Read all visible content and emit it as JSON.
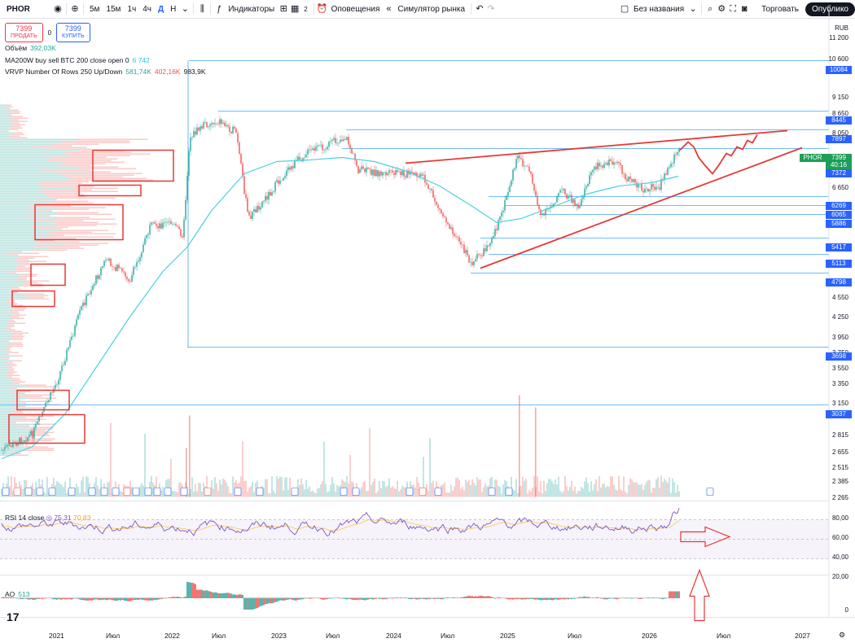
{
  "toolbar": {
    "symbol": "PHOR",
    "intervals": [
      "5м",
      "15м",
      "1ч",
      "4ч",
      "Д",
      "Н"
    ],
    "indicators_label": "Индикаторы",
    "layouts_count": "2",
    "alerts_label": "Оповещения",
    "replay_label": "Симулятор рынка",
    "layout_name": "Без названия",
    "trade_label": "Торговать",
    "publish_label": "Опублико"
  },
  "order": {
    "sell_price": "7399",
    "sell_label": "ПРОДАТЬ",
    "spread": "0",
    "buy_price": "7399",
    "buy_label": "КУПИТЬ"
  },
  "legend": {
    "volume_label": "Объём",
    "volume_value": "392,03K",
    "ma_label": "MA200W buy sell BTC 200 close open 0",
    "ma_value": "6 742",
    "vrvp_label": "VRVP Number Of Rows 250 Up/Down",
    "vrvp_up": "581,74K",
    "vrvp_down": "402,16K",
    "vrvp_total": "983,9K",
    "rsi_label": "RSI 14 close",
    "rsi_value": "75,31",
    "rsi_value2": "70,83",
    "ao_label": "AO",
    "ao_value": "513"
  },
  "price_axis": {
    "currency": "RUB",
    "labels": [
      "11 200",
      "10 600",
      "9 150",
      "8 650",
      "8 050",
      "6 650",
      "4 550",
      "4 250",
      "3 950",
      "3 750",
      "3 550",
      "3 350",
      "3 150",
      "2 815",
      "2 655",
      "2 515",
      "2 385",
      "2 265"
    ],
    "tags": [
      {
        "text": "10084",
        "color": "#2962ff"
      },
      {
        "text": "8445",
        "color": "#2962ff"
      },
      {
        "text": "7897",
        "color": "#2962ff"
      },
      {
        "text": "7399",
        "color": "#1e9e59"
      },
      {
        "text": "40:16",
        "color": "#1e9e59"
      },
      {
        "text": "7372",
        "color": "#2962ff"
      },
      {
        "text": "6269",
        "color": "#2962ff"
      },
      {
        "text": "6065",
        "color": "#2962ff"
      },
      {
        "text": "5886",
        "color": "#2962ff"
      },
      {
        "text": "5417",
        "color": "#2962ff"
      },
      {
        "text": "5113",
        "color": "#2962ff"
      },
      {
        "text": "4798",
        "color": "#2962ff"
      },
      {
        "text": "3698",
        "color": "#2962ff"
      },
      {
        "text": "3037",
        "color": "#2962ff"
      }
    ],
    "symbol_tag": "PHOR"
  },
  "rsi_axis": [
    "80,00",
    "60,00",
    "40,00",
    "20,00"
  ],
  "ao_axis": [
    "0"
  ],
  "time_axis": [
    "2021",
    "Июл",
    "2022",
    "Июл",
    "2023",
    "Июл",
    "2024",
    "Июл",
    "2025",
    "Июл",
    "2026",
    "Июл",
    "2027"
  ],
  "colors": {
    "up": "#26a69a",
    "down": "#ef5350",
    "ma": "#4dd0e1",
    "annotation": "#e53935",
    "level": "#42a5f5",
    "rsi": "#7e57c2"
  }
}
